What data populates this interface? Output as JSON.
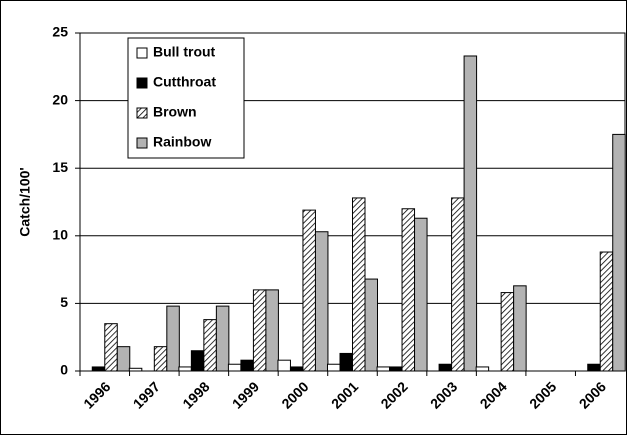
{
  "chart_data": {
    "type": "bar",
    "y_label": "Catch/100'",
    "categories": [
      "1996",
      "1997",
      "1998",
      "1999",
      "2000",
      "2001",
      "2002",
      "2003",
      "2004",
      "2005",
      "2006"
    ],
    "series": [
      {
        "name": "Bull trout",
        "color": "#ffffff",
        "values": [
          0,
          0.2,
          0.3,
          0.5,
          0.8,
          0.5,
          0.3,
          0,
          0.3,
          0,
          0
        ]
      },
      {
        "name": "Cutthroat",
        "color": "#000000",
        "values": [
          0.3,
          0,
          1.5,
          0.8,
          0.3,
          1.3,
          0.3,
          0.5,
          0,
          0,
          0.5
        ]
      },
      {
        "name": "Brown",
        "color": "#ffffff",
        "pattern": "hatch",
        "values": [
          3.5,
          1.8,
          3.8,
          6.0,
          11.9,
          12.8,
          12.0,
          12.8,
          5.8,
          0,
          8.8
        ]
      },
      {
        "name": "Rainbow",
        "color": "#b3b3b3",
        "values": [
          1.8,
          4.8,
          4.8,
          6.0,
          10.3,
          6.8,
          11.3,
          23.3,
          6.3,
          0,
          17.5
        ]
      }
    ],
    "ylim": [
      0,
      25
    ],
    "yticks": [
      0,
      5,
      10,
      15,
      20,
      25
    ],
    "grid": true,
    "legend": "top-left"
  }
}
